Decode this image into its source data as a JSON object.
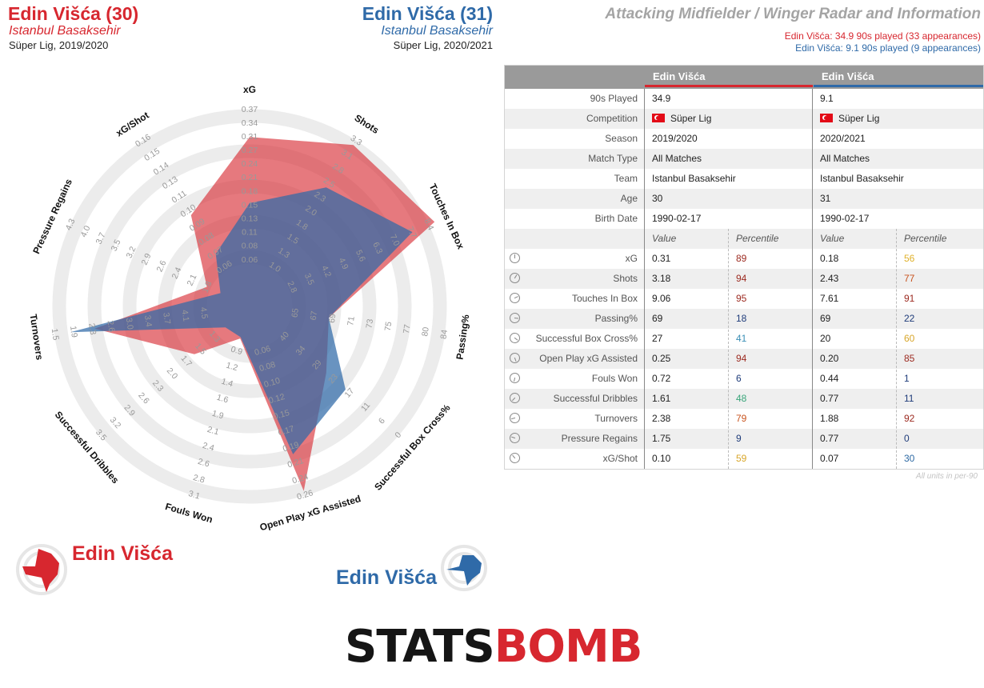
{
  "header": {
    "player1_name": "Edin Višća (30)",
    "player1_team": "Istanbul Basaksehir",
    "player1_comp": "Süper Lig, 2019/2020",
    "player2_name": "Edin Višća (31)",
    "player2_team": "Istanbul Basaksehir",
    "player2_comp": "Süper Lig, 2020/2021",
    "title": "Attacking Midfielder / Winger Radar and Information",
    "subtitle1": "Edin Višća: 34.9 90s played (33 appearances)",
    "subtitle2": "Edin Višća: 9.1 90s played (9 appearances)"
  },
  "colors": {
    "player1": "#d7272f",
    "player2": "#2f6aa8",
    "header_bg": "#9a9a9a"
  },
  "chart_data": {
    "type": "radar",
    "axes": [
      {
        "label": "xG",
        "ticks": [
          "0.06",
          "0.08",
          "0.11",
          "0.13",
          "0.15",
          "0.18",
          "0.21",
          "0.24",
          "0.27",
          "0.31",
          "0.34",
          "0.37"
        ],
        "min": 0.04,
        "max": 0.37
      },
      {
        "label": "Shots",
        "ticks": [
          "1.0",
          "1.3",
          "1.5",
          "1.8",
          "2.0",
          "2.3",
          "2.5",
          "2.8",
          "3.1",
          "3.3"
        ],
        "min": 0.8,
        "max": 3.3
      },
      {
        "label": "Touches In Box",
        "ticks": [
          "2.8",
          "3.5",
          "4.2",
          "4.9",
          "5.6",
          "6.3",
          "7.0",
          "7.7",
          "8.4"
        ],
        "min": 2.1,
        "max": 8.4
      },
      {
        "label": "Passing%",
        "ticks": [
          "65",
          "67",
          "69",
          "71",
          "73",
          "75",
          "77",
          "80",
          "84"
        ],
        "min": 63,
        "max": 84
      },
      {
        "label": "Successful Box Cross%",
        "ticks": [
          "40",
          "34",
          "29",
          "23",
          "17",
          "11",
          "6",
          "0"
        ],
        "min": 46,
        "max": 0
      },
      {
        "label": "Open Play xG Assisted",
        "ticks": [
          "0.06",
          "0.08",
          "0.10",
          "0.12",
          "0.15",
          "0.17",
          "0.19",
          "0.21",
          "0.24",
          "0.26"
        ],
        "min": 0.04,
        "max": 0.26
      },
      {
        "label": "Fouls Won",
        "ticks": [
          "0.9",
          "1.2",
          "1.4",
          "1.6",
          "1.9",
          "2.1",
          "2.4",
          "2.6",
          "2.8",
          "3.1"
        ],
        "min": 0.7,
        "max": 3.1
      },
      {
        "label": "Successful Dribbles",
        "ticks": [
          "1.3",
          "1.5",
          "1.7",
          "2.0",
          "2.3",
          "2.6",
          "2.9",
          "3.2",
          "3.5"
        ],
        "min": 1.0,
        "max": 3.5
      },
      {
        "label": "Turnovers",
        "ticks": [
          "4.5",
          "4.1",
          "3.7",
          "3.4",
          "3.0",
          "2.6",
          "2.3",
          "1.9",
          "1.5"
        ],
        "min": 4.9,
        "max": 1.5
      },
      {
        "label": "Pressure Regains",
        "ticks": [
          "1.8",
          "2.1",
          "2.4",
          "2.6",
          "2.9",
          "3.2",
          "3.5",
          "3.7",
          "4.0",
          "4.3"
        ],
        "min": 1.5,
        "max": 4.3
      },
      {
        "label": "xG/Shot",
        "ticks": [
          "0.06",
          "0.07",
          "0.08",
          "0.09",
          "0.10",
          "0.11",
          "0.13",
          "0.14",
          "0.15",
          "0.16"
        ],
        "min": 0.05,
        "max": 0.16
      }
    ],
    "series": [
      {
        "name": "Edin Višća",
        "season": "2019/2020",
        "values": [
          0.31,
          3.18,
          9.06,
          69,
          27,
          0.25,
          0.72,
          1.61,
          2.38,
          1.75,
          0.1
        ]
      },
      {
        "name": "Edin Višća",
        "season": "2020/2021",
        "values": [
          0.18,
          2.43,
          7.61,
          69,
          20,
          0.2,
          0.44,
          0.77,
          1.88,
          0.77,
          0.07
        ]
      }
    ]
  },
  "table": {
    "col1_header": "Edin Višća",
    "col2_header": "Edin Višća",
    "info_rows": [
      {
        "label": "90s Played",
        "v1": "34.9",
        "v2": "9.1"
      },
      {
        "label": "Competition",
        "v1": "Süper Lig",
        "v2": "Süper Lig",
        "flag": true
      },
      {
        "label": "Season",
        "v1": "2019/2020",
        "v2": "2020/2021"
      },
      {
        "label": "Match Type",
        "v1": "All Matches",
        "v2": "All Matches"
      },
      {
        "label": "Team",
        "v1": "Istanbul Basaksehir",
        "v2": "Istanbul Basaksehir"
      },
      {
        "label": "Age",
        "v1": "30",
        "v2": "31"
      },
      {
        "label": "Birth Date",
        "v1": "1990-02-17",
        "v2": "1990-02-17"
      }
    ],
    "value_header": "Value",
    "percentile_header": "Percentile",
    "stat_rows": [
      {
        "label": "xG",
        "v1": "0.31",
        "p1": "89",
        "c1": "#9c2a20",
        "v2": "0.18",
        "p2": "56",
        "c2": "#e0b12a"
      },
      {
        "label": "Shots",
        "v1": "3.18",
        "p1": "94",
        "c1": "#9c2a20",
        "v2": "2.43",
        "p2": "77",
        "c2": "#c8531e"
      },
      {
        "label": "Touches In Box",
        "v1": "9.06",
        "p1": "95",
        "c1": "#9c2a20",
        "v2": "7.61",
        "p2": "91",
        "c2": "#9c2a20"
      },
      {
        "label": "Passing%",
        "v1": "69",
        "p1": "18",
        "c1": "#1f3c7a",
        "v2": "69",
        "p2": "22",
        "c2": "#1f3c7a"
      },
      {
        "label": "Successful Box Cross%",
        "v1": "27",
        "p1": "41",
        "c1": "#3b8fb6",
        "v2": "20",
        "p2": "60",
        "c2": "#d8a62a"
      },
      {
        "label": "Open Play xG Assisted",
        "v1": "0.25",
        "p1": "94",
        "c1": "#9c2a20",
        "v2": "0.20",
        "p2": "85",
        "c2": "#9c2a20"
      },
      {
        "label": "Fouls Won",
        "v1": "0.72",
        "p1": "6",
        "c1": "#1f3c7a",
        "v2": "0.44",
        "p2": "1",
        "c2": "#1f3c7a"
      },
      {
        "label": "Successful Dribbles",
        "v1": "1.61",
        "p1": "48",
        "c1": "#3aa57a",
        "v2": "0.77",
        "p2": "11",
        "c2": "#1f3c7a"
      },
      {
        "label": "Turnovers",
        "v1": "2.38",
        "p1": "79",
        "c1": "#c8531e",
        "v2": "1.88",
        "p2": "92",
        "c2": "#9c2a20"
      },
      {
        "label": "Pressure Regains",
        "v1": "1.75",
        "p1": "9",
        "c1": "#1f3c7a",
        "v2": "0.77",
        "p2": "0",
        "c2": "#1f3c7a"
      },
      {
        "label": "xG/Shot",
        "v1": "0.10",
        "p1": "59",
        "c1": "#d8a62a",
        "v2": "0.07",
        "p2": "30",
        "c2": "#2e6aa4"
      }
    ],
    "units_note": "All units in per-90"
  },
  "legend": {
    "player1": "Edin Višća",
    "player2": "Edin Višća"
  },
  "logo": {
    "part1": "STATS",
    "part2": "BOMB"
  }
}
